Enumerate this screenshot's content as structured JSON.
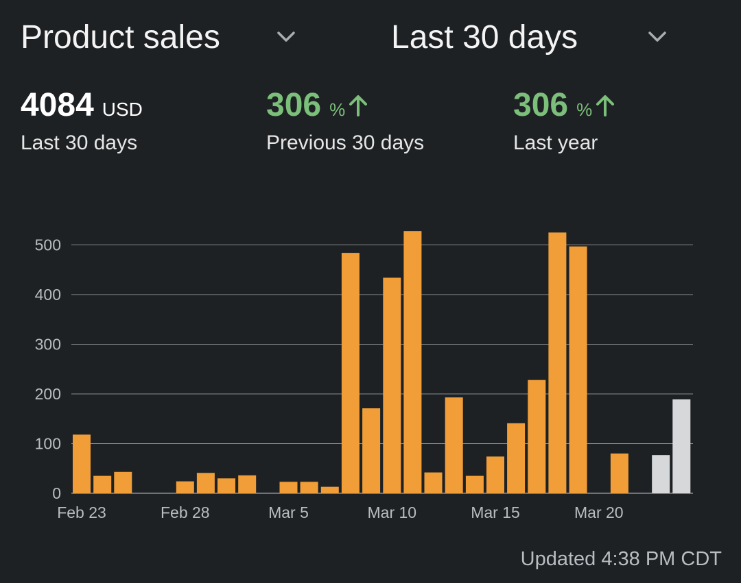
{
  "header": {
    "metric_selector": {
      "label": "Product sales",
      "icon": "chevron-down-icon"
    },
    "range_selector": {
      "label": "Last 30 days",
      "icon": "chevron-down-icon"
    }
  },
  "stats": {
    "total": {
      "value": "4084",
      "unit": "USD",
      "caption": "Last 30 days"
    },
    "previous_period": {
      "value": "306",
      "unit": "%",
      "caption": "Previous 30 days",
      "icon": "arrow-up-icon"
    },
    "last_year": {
      "value": "306",
      "unit": "%",
      "caption": "Last year",
      "icon": "arrow-up-icon"
    }
  },
  "colors": {
    "bar": "#f19e38",
    "bar_incomplete": "#d7d8da",
    "positive": "#7cbf7a",
    "background": "#1e2124",
    "grid": "#8a8d91"
  },
  "chart_data": {
    "type": "bar",
    "categories": [
      "Feb 23",
      "Feb 24",
      "Feb 25",
      "Feb 26",
      "Feb 27",
      "Feb 28",
      "Mar 1",
      "Mar 2",
      "Mar 3",
      "Mar 4",
      "Mar 5",
      "Mar 6",
      "Mar 7",
      "Mar 8",
      "Mar 9",
      "Mar 10",
      "Mar 11",
      "Mar 12",
      "Mar 13",
      "Mar 14",
      "Mar 15",
      "Mar 16",
      "Mar 17",
      "Mar 18",
      "Mar 19",
      "Mar 20",
      "Mar 21",
      "Mar 22",
      "Mar 23",
      "Mar 24"
    ],
    "values": [
      118,
      35,
      43,
      0,
      0,
      24,
      41,
      30,
      36,
      0,
      23,
      23,
      13,
      484,
      171,
      434,
      528,
      42,
      193,
      35,
      74,
      141,
      228,
      525,
      497,
      0,
      80,
      0,
      77,
      189
    ],
    "highlight_last_n": 2,
    "x_tick_labels": [
      "Feb 23",
      "Feb 28",
      "Mar 5",
      "Mar 10",
      "Mar 15",
      "Mar 20"
    ],
    "y_ticks": [
      0,
      100,
      200,
      300,
      400,
      500
    ],
    "ylim": [
      0,
      560
    ],
    "grid": true
  },
  "footer": {
    "updated": "Updated 4:38 PM CDT"
  }
}
